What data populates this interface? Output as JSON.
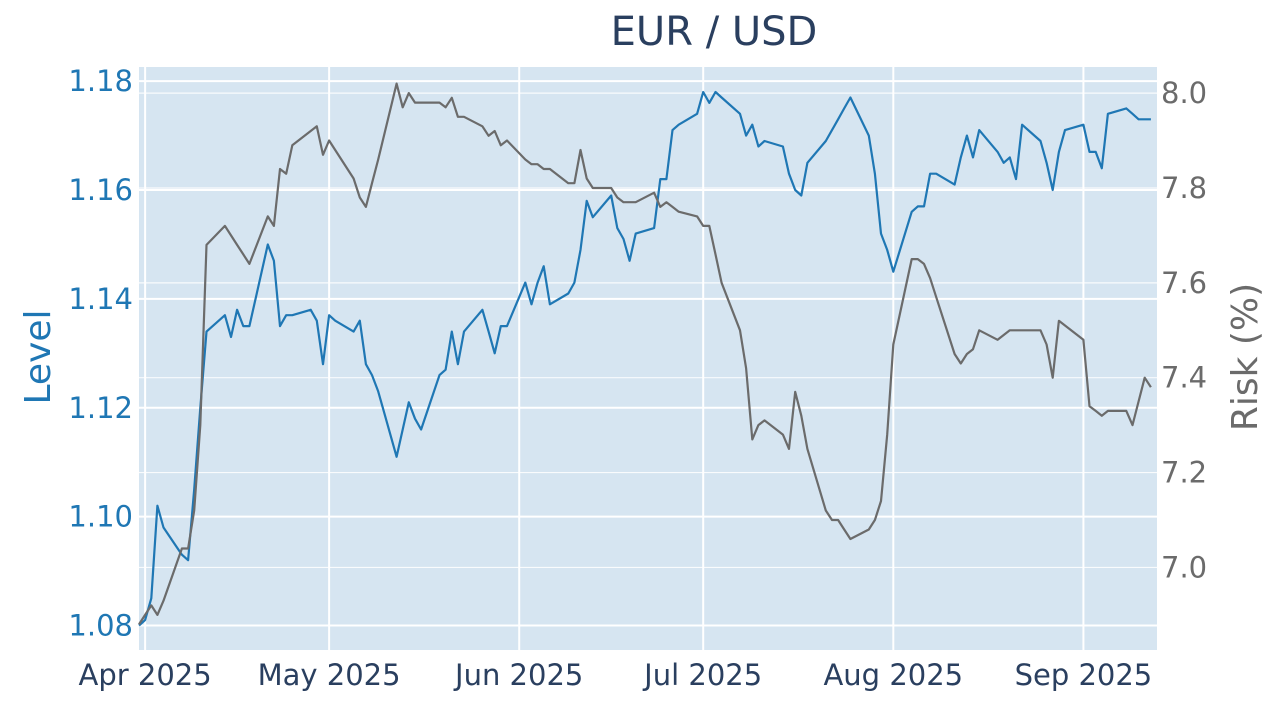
{
  "chart_data": {
    "type": "line",
    "title": "EUR / USD",
    "y_left": {
      "label": "Level",
      "range": [
        1.0755,
        1.1826
      ],
      "ticks": [
        "1.08",
        "1.10",
        "1.12",
        "1.14",
        "1.16",
        "1.18"
      ],
      "tick_values": [
        1.08,
        1.1,
        1.12,
        1.14,
        1.16,
        1.18
      ]
    },
    "y_right": {
      "label": "Risk (%)",
      "range": [
        6.826,
        8.055
      ],
      "ticks": [
        "7.0",
        "7.2",
        "7.4",
        "7.6",
        "7.8",
        "8.0"
      ],
      "tick_values": [
        7.0,
        7.2,
        7.4,
        7.6,
        7.8,
        8.0
      ]
    },
    "x": {
      "range": [
        "2025-03-31",
        "2025-09-13"
      ],
      "ticks": [
        "Apr 2025",
        "May 2025",
        "Jun 2025",
        "Jul 2025",
        "Aug 2025",
        "Sep 2025"
      ],
      "tick_dates": [
        "2025-04-01",
        "2025-05-01",
        "2025-06-01",
        "2025-07-01",
        "2025-08-01",
        "2025-09-01"
      ]
    },
    "grid": true,
    "colors": {
      "level": "#1f77b4",
      "risk": "#6b6b6b",
      "plot_bg": "#d6e5f1",
      "grid": "#ffffff",
      "title": "#2a3f5f",
      "risk_axis": "#6b6b6b"
    },
    "series": [
      {
        "axis": "left",
        "points": [
          [
            "2025-03-31",
            1.08
          ],
          [
            "2025-04-01",
            1.081
          ],
          [
            "2025-04-02",
            1.085
          ],
          [
            "2025-04-03",
            1.102
          ],
          [
            "2025-04-04",
            1.098
          ],
          [
            "2025-04-07",
            1.093
          ],
          [
            "2025-04-08",
            1.092
          ],
          [
            "2025-04-09",
            1.105
          ],
          [
            "2025-04-10",
            1.12
          ],
          [
            "2025-04-11",
            1.134
          ],
          [
            "2025-04-14",
            1.137
          ],
          [
            "2025-04-15",
            1.133
          ],
          [
            "2025-04-16",
            1.138
          ],
          [
            "2025-04-17",
            1.135
          ],
          [
            "2025-04-18",
            1.135
          ],
          [
            "2025-04-21",
            1.15
          ],
          [
            "2025-04-22",
            1.147
          ],
          [
            "2025-04-23",
            1.135
          ],
          [
            "2025-04-24",
            1.137
          ],
          [
            "2025-04-25",
            1.137
          ],
          [
            "2025-04-28",
            1.138
          ],
          [
            "2025-04-29",
            1.136
          ],
          [
            "2025-04-30",
            1.128
          ],
          [
            "2025-05-01",
            1.137
          ],
          [
            "2025-05-02",
            1.136
          ],
          [
            "2025-05-05",
            1.134
          ],
          [
            "2025-05-06",
            1.136
          ],
          [
            "2025-05-07",
            1.128
          ],
          [
            "2025-05-08",
            1.126
          ],
          [
            "2025-05-09",
            1.123
          ],
          [
            "2025-05-12",
            1.111
          ],
          [
            "2025-05-13",
            1.116
          ],
          [
            "2025-05-14",
            1.121
          ],
          [
            "2025-05-15",
            1.118
          ],
          [
            "2025-05-16",
            1.116
          ],
          [
            "2025-05-19",
            1.126
          ],
          [
            "2025-05-20",
            1.127
          ],
          [
            "2025-05-21",
            1.134
          ],
          [
            "2025-05-22",
            1.128
          ],
          [
            "2025-05-23",
            1.134
          ],
          [
            "2025-05-26",
            1.138
          ],
          [
            "2025-05-27",
            1.134
          ],
          [
            "2025-05-28",
            1.13
          ],
          [
            "2025-05-29",
            1.135
          ],
          [
            "2025-05-30",
            1.135
          ],
          [
            "2025-06-02",
            1.143
          ],
          [
            "2025-06-03",
            1.139
          ],
          [
            "2025-06-04",
            1.143
          ],
          [
            "2025-06-05",
            1.146
          ],
          [
            "2025-06-06",
            1.139
          ],
          [
            "2025-06-09",
            1.141
          ],
          [
            "2025-06-10",
            1.143
          ],
          [
            "2025-06-11",
            1.149
          ],
          [
            "2025-06-12",
            1.158
          ],
          [
            "2025-06-13",
            1.155
          ],
          [
            "2025-06-16",
            1.159
          ],
          [
            "2025-06-17",
            1.153
          ],
          [
            "2025-06-18",
            1.151
          ],
          [
            "2025-06-19",
            1.147
          ],
          [
            "2025-06-20",
            1.152
          ],
          [
            "2025-06-23",
            1.153
          ],
          [
            "2025-06-24",
            1.162
          ],
          [
            "2025-06-25",
            1.162
          ],
          [
            "2025-06-26",
            1.171
          ],
          [
            "2025-06-27",
            1.172
          ],
          [
            "2025-06-30",
            1.174
          ],
          [
            "2025-07-01",
            1.178
          ],
          [
            "2025-07-02",
            1.176
          ],
          [
            "2025-07-03",
            1.178
          ],
          [
            "2025-07-04",
            1.177
          ],
          [
            "2025-07-07",
            1.174
          ],
          [
            "2025-07-08",
            1.17
          ],
          [
            "2025-07-09",
            1.172
          ],
          [
            "2025-07-10",
            1.168
          ],
          [
            "2025-07-11",
            1.169
          ],
          [
            "2025-07-14",
            1.168
          ],
          [
            "2025-07-15",
            1.163
          ],
          [
            "2025-07-16",
            1.16
          ],
          [
            "2025-07-17",
            1.159
          ],
          [
            "2025-07-18",
            1.165
          ],
          [
            "2025-07-21",
            1.169
          ],
          [
            "2025-07-22",
            1.171
          ],
          [
            "2025-07-23",
            1.173
          ],
          [
            "2025-07-24",
            1.175
          ],
          [
            "2025-07-25",
            1.177
          ],
          [
            "2025-07-28",
            1.17
          ],
          [
            "2025-07-29",
            1.163
          ],
          [
            "2025-07-30",
            1.152
          ],
          [
            "2025-07-31",
            1.149
          ],
          [
            "2025-08-01",
            1.145
          ],
          [
            "2025-08-04",
            1.156
          ],
          [
            "2025-08-05",
            1.157
          ],
          [
            "2025-08-06",
            1.157
          ],
          [
            "2025-08-07",
            1.163
          ],
          [
            "2025-08-08",
            1.163
          ],
          [
            "2025-08-11",
            1.161
          ],
          [
            "2025-08-12",
            1.166
          ],
          [
            "2025-08-13",
            1.17
          ],
          [
            "2025-08-14",
            1.166
          ],
          [
            "2025-08-15",
            1.171
          ],
          [
            "2025-08-18",
            1.167
          ],
          [
            "2025-08-19",
            1.165
          ],
          [
            "2025-08-20",
            1.166
          ],
          [
            "2025-08-21",
            1.162
          ],
          [
            "2025-08-22",
            1.172
          ],
          [
            "2025-08-25",
            1.169
          ],
          [
            "2025-08-26",
            1.165
          ],
          [
            "2025-08-27",
            1.16
          ],
          [
            "2025-08-28",
            1.167
          ],
          [
            "2025-08-29",
            1.171
          ],
          [
            "2025-09-01",
            1.172
          ],
          [
            "2025-09-02",
            1.167
          ],
          [
            "2025-09-03",
            1.167
          ],
          [
            "2025-09-04",
            1.164
          ],
          [
            "2025-09-05",
            1.174
          ],
          [
            "2025-09-08",
            1.175
          ],
          [
            "2025-09-09",
            1.174
          ],
          [
            "2025-09-10",
            1.173
          ],
          [
            "2025-09-11",
            1.173
          ],
          [
            "2025-09-12",
            1.173
          ]
        ]
      },
      {
        "axis": "right",
        "points": [
          [
            "2025-03-31",
            6.88
          ],
          [
            "2025-04-01",
            6.9
          ],
          [
            "2025-04-02",
            6.92
          ],
          [
            "2025-04-03",
            6.9
          ],
          [
            "2025-04-04",
            6.93
          ],
          [
            "2025-04-07",
            7.04
          ],
          [
            "2025-04-08",
            7.04
          ],
          [
            "2025-04-09",
            7.12
          ],
          [
            "2025-04-10",
            7.3
          ],
          [
            "2025-04-11",
            7.68
          ],
          [
            "2025-04-14",
            7.72
          ],
          [
            "2025-04-15",
            7.7
          ],
          [
            "2025-04-16",
            7.68
          ],
          [
            "2025-04-17",
            7.66
          ],
          [
            "2025-04-18",
            7.64
          ],
          [
            "2025-04-21",
            7.74
          ],
          [
            "2025-04-22",
            7.72
          ],
          [
            "2025-04-23",
            7.84
          ],
          [
            "2025-04-24",
            7.83
          ],
          [
            "2025-04-25",
            7.89
          ],
          [
            "2025-04-28",
            7.92
          ],
          [
            "2025-04-29",
            7.93
          ],
          [
            "2025-04-30",
            7.87
          ],
          [
            "2025-05-01",
            7.9
          ],
          [
            "2025-05-02",
            7.88
          ],
          [
            "2025-05-05",
            7.82
          ],
          [
            "2025-05-06",
            7.78
          ],
          [
            "2025-05-07",
            7.76
          ],
          [
            "2025-05-08",
            7.81
          ],
          [
            "2025-05-09",
            7.86
          ],
          [
            "2025-05-12",
            8.02
          ],
          [
            "2025-05-13",
            7.97
          ],
          [
            "2025-05-14",
            8.0
          ],
          [
            "2025-05-15",
            7.98
          ],
          [
            "2025-05-16",
            7.98
          ],
          [
            "2025-05-19",
            7.98
          ],
          [
            "2025-05-20",
            7.97
          ],
          [
            "2025-05-21",
            7.99
          ],
          [
            "2025-05-22",
            7.95
          ],
          [
            "2025-05-23",
            7.95
          ],
          [
            "2025-05-26",
            7.93
          ],
          [
            "2025-05-27",
            7.91
          ],
          [
            "2025-05-28",
            7.92
          ],
          [
            "2025-05-29",
            7.89
          ],
          [
            "2025-05-30",
            7.9
          ],
          [
            "2025-06-02",
            7.86
          ],
          [
            "2025-06-03",
            7.85
          ],
          [
            "2025-06-04",
            7.85
          ],
          [
            "2025-06-05",
            7.84
          ],
          [
            "2025-06-06",
            7.84
          ],
          [
            "2025-06-09",
            7.81
          ],
          [
            "2025-06-10",
            7.81
          ],
          [
            "2025-06-11",
            7.88
          ],
          [
            "2025-06-12",
            7.82
          ],
          [
            "2025-06-13",
            7.8
          ],
          [
            "2025-06-16",
            7.8
          ],
          [
            "2025-06-17",
            7.78
          ],
          [
            "2025-06-18",
            7.77
          ],
          [
            "2025-06-19",
            7.77
          ],
          [
            "2025-06-20",
            7.77
          ],
          [
            "2025-06-23",
            7.79
          ],
          [
            "2025-06-24",
            7.76
          ],
          [
            "2025-06-25",
            7.77
          ],
          [
            "2025-06-26",
            7.76
          ],
          [
            "2025-06-27",
            7.75
          ],
          [
            "2025-06-30",
            7.74
          ],
          [
            "2025-07-01",
            7.72
          ],
          [
            "2025-07-02",
            7.72
          ],
          [
            "2025-07-03",
            7.66
          ],
          [
            "2025-07-04",
            7.6
          ],
          [
            "2025-07-07",
            7.5
          ],
          [
            "2025-07-08",
            7.42
          ],
          [
            "2025-07-09",
            7.27
          ],
          [
            "2025-07-10",
            7.3
          ],
          [
            "2025-07-11",
            7.31
          ],
          [
            "2025-07-14",
            7.28
          ],
          [
            "2025-07-15",
            7.25
          ],
          [
            "2025-07-16",
            7.37
          ],
          [
            "2025-07-17",
            7.32
          ],
          [
            "2025-07-18",
            7.25
          ],
          [
            "2025-07-21",
            7.12
          ],
          [
            "2025-07-22",
            7.1
          ],
          [
            "2025-07-23",
            7.1
          ],
          [
            "2025-07-24",
            7.08
          ],
          [
            "2025-07-25",
            7.06
          ],
          [
            "2025-07-28",
            7.08
          ],
          [
            "2025-07-29",
            7.1
          ],
          [
            "2025-07-30",
            7.14
          ],
          [
            "2025-07-31",
            7.28
          ],
          [
            "2025-08-01",
            7.47
          ],
          [
            "2025-08-04",
            7.65
          ],
          [
            "2025-08-05",
            7.65
          ],
          [
            "2025-08-06",
            7.64
          ],
          [
            "2025-08-07",
            7.61
          ],
          [
            "2025-08-08",
            7.57
          ],
          [
            "2025-08-11",
            7.45
          ],
          [
            "2025-08-12",
            7.43
          ],
          [
            "2025-08-13",
            7.45
          ],
          [
            "2025-08-14",
            7.46
          ],
          [
            "2025-08-15",
            7.5
          ],
          [
            "2025-08-18",
            7.48
          ],
          [
            "2025-08-19",
            7.49
          ],
          [
            "2025-08-20",
            7.5
          ],
          [
            "2025-08-21",
            7.5
          ],
          [
            "2025-08-22",
            7.5
          ],
          [
            "2025-08-25",
            7.5
          ],
          [
            "2025-08-26",
            7.47
          ],
          [
            "2025-08-27",
            7.4
          ],
          [
            "2025-08-28",
            7.52
          ],
          [
            "2025-08-29",
            7.51
          ],
          [
            "2025-09-01",
            7.48
          ],
          [
            "2025-09-02",
            7.34
          ],
          [
            "2025-09-03",
            7.33
          ],
          [
            "2025-09-04",
            7.32
          ],
          [
            "2025-09-05",
            7.33
          ],
          [
            "2025-09-08",
            7.33
          ],
          [
            "2025-09-09",
            7.3
          ],
          [
            "2025-09-10",
            7.35
          ],
          [
            "2025-09-11",
            7.4
          ],
          [
            "2025-09-12",
            7.38
          ]
        ]
      }
    ]
  }
}
